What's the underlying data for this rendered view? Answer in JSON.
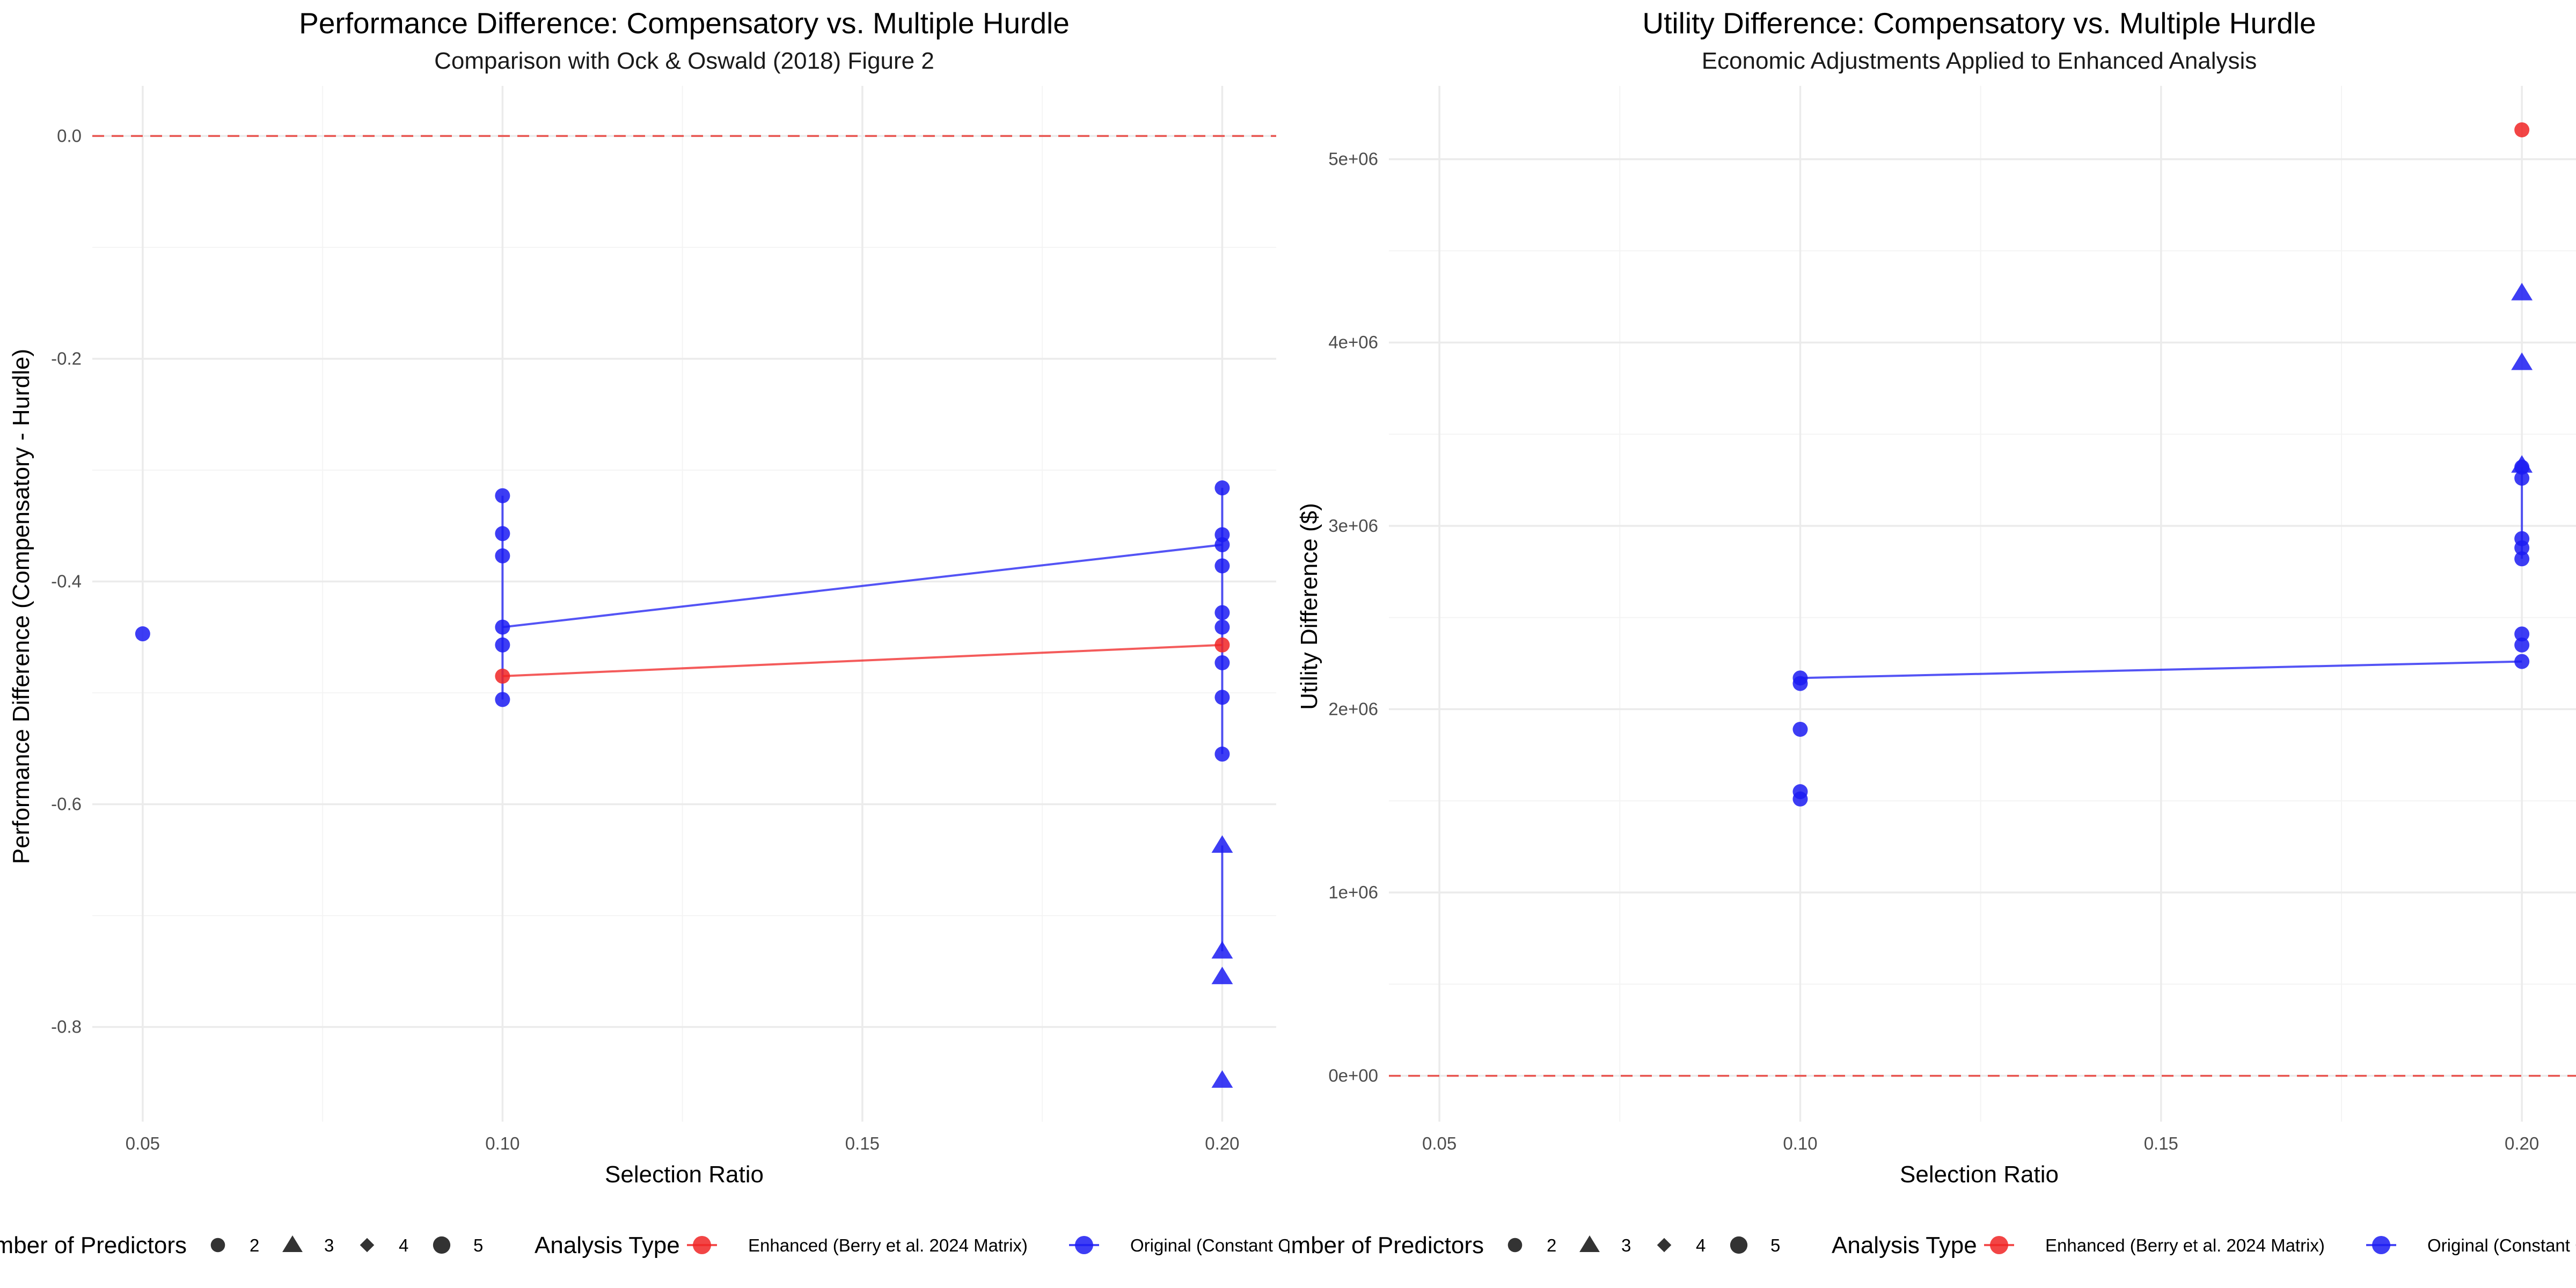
{
  "colors": {
    "enhanced": "#f02424",
    "original": "#1b1bf2",
    "shape_key": "#333333",
    "zero_line": "#e8544f"
  },
  "legend": {
    "shape_title": "Number of Predictors",
    "shape_items": [
      {
        "label": "2",
        "shape": "circle"
      },
      {
        "label": "3",
        "shape": "triangle"
      },
      {
        "label": "4",
        "shape": "diamond"
      },
      {
        "label": "5",
        "shape": "circle-large"
      }
    ],
    "type_title": "Analysis Type",
    "type_items": [
      {
        "label": "Enhanced (Berry et al. 2024 Matrix)",
        "series": "enhanced"
      },
      {
        "label": "Original (Constant Correlation)",
        "series": "original"
      }
    ]
  },
  "chart_data": [
    {
      "type": "scatter",
      "title": "Performance Difference: Compensatory vs. Multiple Hurdle",
      "subtitle": "Comparison with Ock & Oswald (2018) Figure 2",
      "xlabel": "Selection Ratio",
      "ylabel": "Performance Difference (Compensatory - Hurdle)",
      "xlim": [
        0.043,
        0.2075
      ],
      "ylim": [
        -0.885,
        0.045
      ],
      "xticks": [
        {
          "v": 0.05,
          "label": "0.05"
        },
        {
          "v": 0.1,
          "label": "0.10"
        },
        {
          "v": 0.15,
          "label": "0.15"
        },
        {
          "v": 0.2,
          "label": "0.20"
        }
      ],
      "yticks": [
        {
          "v": 0.0,
          "label": "0.0"
        },
        {
          "v": -0.2,
          "label": "-0.2"
        },
        {
          "v": -0.4,
          "label": "-0.4"
        },
        {
          "v": -0.6,
          "label": "-0.6"
        },
        {
          "v": -0.8,
          "label": "-0.8"
        }
      ],
      "reference_line": 0,
      "series": [
        {
          "series": "original",
          "points": [
            {
              "x": 0.05,
              "y": -0.447,
              "shape": "circle"
            },
            {
              "x": 0.1,
              "y": -0.323,
              "shape": "circle"
            },
            {
              "x": 0.1,
              "y": -0.357,
              "shape": "circle"
            },
            {
              "x": 0.1,
              "y": -0.377,
              "shape": "circle"
            },
            {
              "x": 0.1,
              "y": -0.441,
              "shape": "circle"
            },
            {
              "x": 0.1,
              "y": -0.457,
              "shape": "circle"
            },
            {
              "x": 0.1,
              "y": -0.506,
              "shape": "circle"
            },
            {
              "x": 0.2,
              "y": -0.316,
              "shape": "circle"
            },
            {
              "x": 0.2,
              "y": -0.358,
              "shape": "circle"
            },
            {
              "x": 0.2,
              "y": -0.367,
              "shape": "circle"
            },
            {
              "x": 0.2,
              "y": -0.386,
              "shape": "circle"
            },
            {
              "x": 0.2,
              "y": -0.428,
              "shape": "circle"
            },
            {
              "x": 0.2,
              "y": -0.441,
              "shape": "circle"
            },
            {
              "x": 0.2,
              "y": -0.473,
              "shape": "circle"
            },
            {
              "x": 0.2,
              "y": -0.504,
              "shape": "circle"
            },
            {
              "x": 0.2,
              "y": -0.555,
              "shape": "circle"
            },
            {
              "x": 0.2,
              "y": -0.637,
              "shape": "triangle"
            },
            {
              "x": 0.2,
              "y": -0.732,
              "shape": "triangle"
            },
            {
              "x": 0.2,
              "y": -0.755,
              "shape": "triangle"
            },
            {
              "x": 0.2,
              "y": -0.848,
              "shape": "triangle"
            }
          ],
          "trend": [
            {
              "x": 0.1,
              "y": -0.441
            },
            {
              "x": 0.2,
              "y": -0.367
            }
          ],
          "ranges": [
            {
              "x": 0.1,
              "ymin": -0.506,
              "ymax": -0.323
            },
            {
              "x": 0.2,
              "ymin": -0.555,
              "ymax": -0.316
            },
            {
              "x": 0.2,
              "ymin": -0.732,
              "ymax": -0.637
            }
          ]
        },
        {
          "series": "enhanced",
          "points": [
            {
              "x": 0.1,
              "y": -0.485,
              "shape": "circle"
            },
            {
              "x": 0.2,
              "y": -0.457,
              "shape": "circle"
            }
          ],
          "trend": [
            {
              "x": 0.1,
              "y": -0.485
            },
            {
              "x": 0.2,
              "y": -0.457
            }
          ],
          "ranges": []
        }
      ]
    },
    {
      "type": "scatter",
      "title": "Utility Difference: Compensatory vs. Multiple Hurdle",
      "subtitle": "Economic Adjustments Applied to Enhanced Analysis",
      "xlabel": "Selection Ratio",
      "ylabel": "Utility Difference ($)",
      "xlim": [
        0.043,
        0.2075
      ],
      "ylim": [
        -250000,
        5400000
      ],
      "xticks": [
        {
          "v": 0.05,
          "label": "0.05"
        },
        {
          "v": 0.1,
          "label": "0.10"
        },
        {
          "v": 0.15,
          "label": "0.15"
        },
        {
          "v": 0.2,
          "label": "0.20"
        }
      ],
      "yticks": [
        {
          "v": 0,
          "label": "0e+00"
        },
        {
          "v": 1000000,
          "label": "1e+06"
        },
        {
          "v": 2000000,
          "label": "2e+06"
        },
        {
          "v": 3000000,
          "label": "3e+06"
        },
        {
          "v": 4000000,
          "label": "4e+06"
        },
        {
          "v": 5000000,
          "label": "5e+06"
        }
      ],
      "reference_line": 0,
      "series": [
        {
          "series": "original",
          "points": [
            {
              "x": 0.1,
              "y": 1510000,
              "shape": "circle"
            },
            {
              "x": 0.1,
              "y": 1550000,
              "shape": "circle"
            },
            {
              "x": 0.1,
              "y": 1890000,
              "shape": "circle"
            },
            {
              "x": 0.1,
              "y": 2140000,
              "shape": "circle"
            },
            {
              "x": 0.1,
              "y": 2170000,
              "shape": "circle"
            },
            {
              "x": 0.2,
              "y": 2260000,
              "shape": "circle"
            },
            {
              "x": 0.2,
              "y": 2350000,
              "shape": "circle"
            },
            {
              "x": 0.2,
              "y": 2410000,
              "shape": "circle"
            },
            {
              "x": 0.2,
              "y": 2820000,
              "shape": "circle"
            },
            {
              "x": 0.2,
              "y": 2880000,
              "shape": "circle"
            },
            {
              "x": 0.2,
              "y": 2930000,
              "shape": "circle"
            },
            {
              "x": 0.2,
              "y": 3260000,
              "shape": "circle"
            },
            {
              "x": 0.2,
              "y": 3320000,
              "shape": "circle"
            },
            {
              "x": 0.2,
              "y": 3330000,
              "shape": "triangle"
            },
            {
              "x": 0.2,
              "y": 3890000,
              "shape": "triangle"
            },
            {
              "x": 0.2,
              "y": 4270000,
              "shape": "triangle"
            }
          ],
          "trend": [
            {
              "x": 0.1,
              "y": 2170000
            },
            {
              "x": 0.2,
              "y": 2260000
            }
          ],
          "ranges": [
            {
              "x": 0.2,
              "ymin": 2820000,
              "ymax": 3320000
            }
          ]
        },
        {
          "series": "enhanced",
          "points": [
            {
              "x": 0.2,
              "y": 5160000,
              "shape": "circle"
            }
          ],
          "trend": [],
          "ranges": []
        }
      ]
    }
  ]
}
